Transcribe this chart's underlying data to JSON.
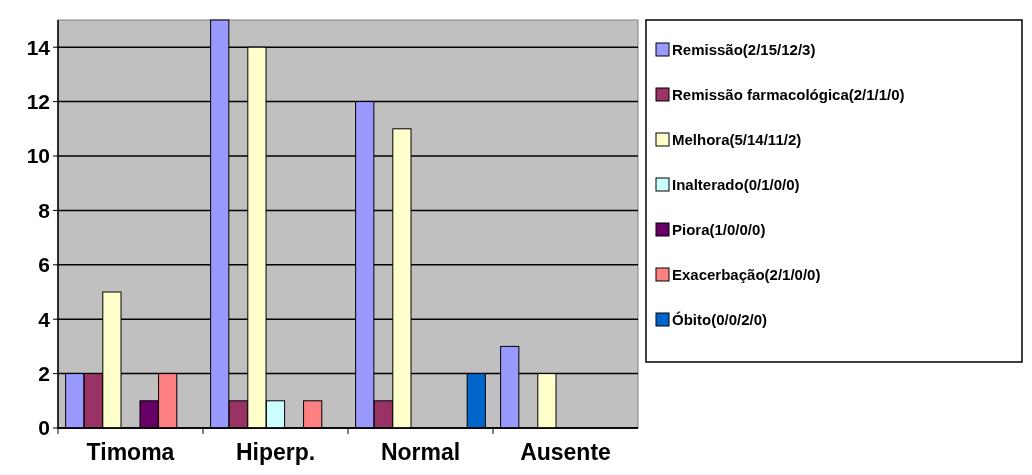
{
  "chart_data": {
    "type": "bar",
    "categories": [
      "Timoma",
      "Hiperp.",
      "Normal",
      "Ausente"
    ],
    "series": [
      {
        "name": "Remissão(2/15/12/3)",
        "color": "#9999ff",
        "values": [
          2,
          15,
          12,
          3
        ]
      },
      {
        "name": "Remissão farmacológica(2/1/1/0)",
        "color": "#993366",
        "values": [
          2,
          1,
          1,
          0
        ]
      },
      {
        "name": "Melhora(5/14/11/2)",
        "color": "#ffffcc",
        "values": [
          5,
          14,
          11,
          2
        ]
      },
      {
        "name": "Inalterado(0/1/0/0)",
        "color": "#ccffff",
        "values": [
          0,
          1,
          0,
          0
        ]
      },
      {
        "name": "Piora(1/0/0/0)",
        "color": "#660066",
        "values": [
          1,
          0,
          0,
          0
        ]
      },
      {
        "name": "Exacerbação(2/1/0/0)",
        "color": "#ff8080",
        "values": [
          2,
          1,
          0,
          0
        ]
      },
      {
        "name": "Óbito(0/0/2/0)",
        "color": "#0066cc",
        "values": [
          0,
          0,
          2,
          0
        ]
      }
    ],
    "ylim": [
      0,
      15
    ],
    "yticks": [
      0,
      2,
      4,
      6,
      8,
      10,
      12,
      14
    ],
    "grid": "y",
    "legend": "right"
  }
}
